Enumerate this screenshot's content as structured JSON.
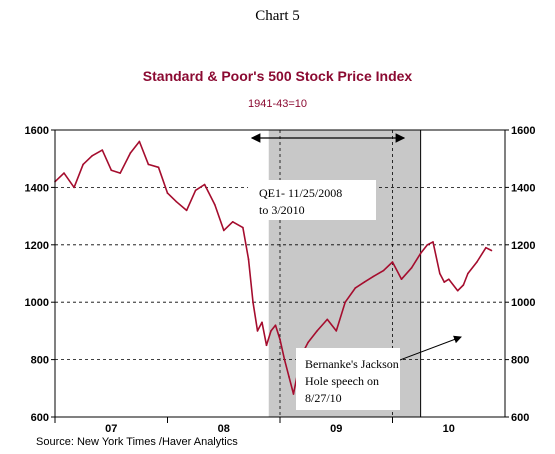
{
  "chart_label": "Chart 5",
  "source": "Source:  New York Times /Haver Analytics",
  "colors": {
    "series": "#a50d2e",
    "title": "#8b0a32",
    "shade": "#c8c8c8"
  },
  "chart_data": {
    "type": "line",
    "title": "Standard & Poor's 500 Stock Price Index",
    "subtitle": "1941-43=10",
    "ylim": [
      600,
      1600
    ],
    "yticks": [
      600,
      800,
      1000,
      1200,
      1400,
      1600
    ],
    "ytick_labels": [
      "600",
      "800",
      "1000",
      "1200",
      "1400",
      "1600"
    ],
    "xlim": [
      2007.0,
      2011.0
    ],
    "x_categories": [
      "07",
      "08",
      "09",
      "10"
    ],
    "grid": true,
    "shaded_range": [
      2008.9,
      2010.25
    ],
    "vertical_lines": [
      2009.0,
      2010.0,
      2010.25
    ],
    "series": [
      {
        "x": [
          2007.0,
          2007.08,
          2007.17,
          2007.25,
          2007.33,
          2007.42,
          2007.5,
          2007.58,
          2007.67,
          2007.75,
          2007.83,
          2007.92,
          2008.0,
          2008.08,
          2008.17,
          2008.25,
          2008.33,
          2008.42,
          2008.5,
          2008.58,
          2008.67,
          2008.72,
          2008.76,
          2008.8,
          2008.84,
          2008.88,
          2008.92,
          2008.96,
          2009.0,
          2009.04,
          2009.08,
          2009.12,
          2009.17,
          2009.21,
          2009.25,
          2009.33,
          2009.42,
          2009.5,
          2009.58,
          2009.67,
          2009.75,
          2009.83,
          2009.92,
          2010.0,
          2010.08,
          2010.17,
          2010.25,
          2010.31,
          2010.36,
          2010.42,
          2010.46,
          2010.5,
          2010.58,
          2010.63,
          2010.67,
          2010.75,
          2010.83,
          2010.88
        ],
        "values": [
          1420,
          1450,
          1400,
          1480,
          1510,
          1530,
          1460,
          1450,
          1520,
          1560,
          1480,
          1470,
          1380,
          1350,
          1320,
          1390,
          1410,
          1340,
          1250,
          1280,
          1260,
          1150,
          1000,
          900,
          930,
          850,
          900,
          920,
          870,
          800,
          740,
          680,
          780,
          830,
          860,
          900,
          940,
          900,
          1000,
          1050,
          1070,
          1090,
          1110,
          1140,
          1080,
          1120,
          1170,
          1200,
          1210,
          1100,
          1070,
          1080,
          1040,
          1060,
          1100,
          1140,
          1190,
          1180
        ]
      }
    ],
    "annotations": [
      {
        "lines": [
          "QE1- 11/25/2008",
          "to 3/2010"
        ]
      },
      {
        "lines": [
          "Bernanke's Jackson",
          "Hole speech on",
          "8/27/10"
        ]
      }
    ]
  }
}
